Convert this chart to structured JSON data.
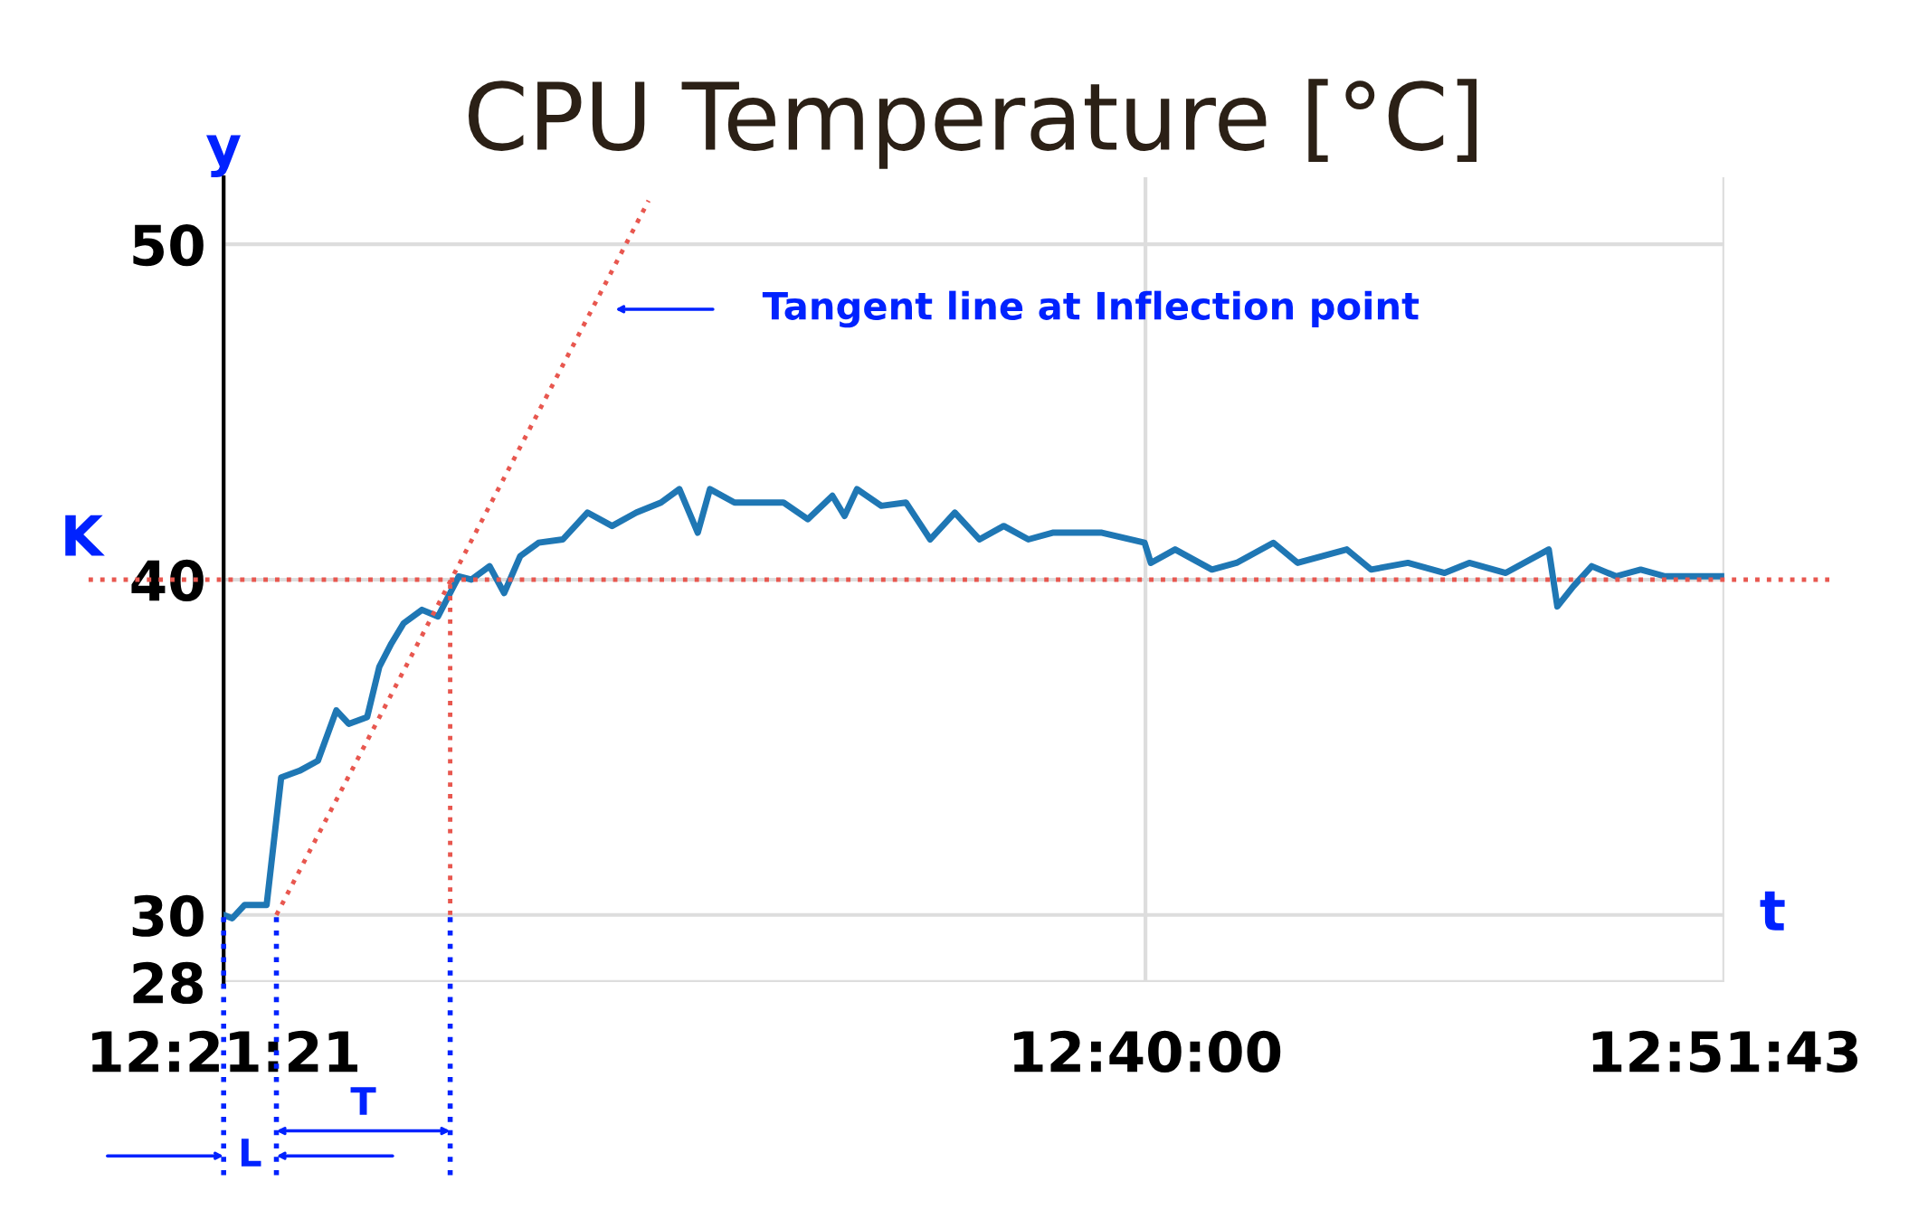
{
  "chart_data": {
    "type": "line",
    "title": "CPU Temperature [°C]",
    "xlabel": "t",
    "ylabel": "y",
    "x": [
      12.3558,
      12.3587,
      12.3629,
      12.3703,
      12.3752,
      12.3814,
      12.3876,
      12.3938,
      12.398,
      12.4042,
      12.4083,
      12.4124,
      12.4165,
      12.4227,
      12.4281,
      12.431,
      12.4351,
      12.4393,
      12.4455,
      12.4504,
      12.4558,
      12.462,
      12.4702,
      12.4785,
      12.4868,
      12.495,
      12.5033,
      12.5095,
      12.5157,
      12.5198,
      12.5281,
      12.5446,
      12.5528,
      12.5611,
      12.5652,
      12.5694,
      12.5776,
      12.5859,
      12.5941,
      12.6024,
      12.6107,
      12.6189,
      12.6272,
      12.6354,
      12.652,
      12.6664,
      12.6685,
      12.6767,
      12.6891,
      12.6974,
      12.7098,
      12.718,
      12.7346,
      12.7428,
      12.7552,
      12.7676,
      12.7759,
      12.7882,
      12.8027,
      12.8056,
      12.811,
      12.8172,
      12.8254,
      12.8337,
      12.8419,
      12.8619
    ],
    "series": [
      {
        "color": "#1f77b4",
        "line_style": "solid",
        "values": [
          30.0,
          29.9,
          30.3,
          30.3,
          34.1,
          34.3,
          34.6,
          36.1,
          35.7,
          35.9,
          37.4,
          38.1,
          38.7,
          39.1,
          38.9,
          39.4,
          40.1,
          40.0,
          40.4,
          39.6,
          40.7,
          41.1,
          41.2,
          42.0,
          41.6,
          42.0,
          42.3,
          42.7,
          41.4,
          42.7,
          42.3,
          42.3,
          41.8,
          42.5,
          41.9,
          42.7,
          42.2,
          42.3,
          41.2,
          42.0,
          41.2,
          41.6,
          41.2,
          41.4,
          41.4,
          41.1,
          40.5,
          40.9,
          40.3,
          40.5,
          41.1,
          40.5,
          40.9,
          40.3,
          40.5,
          40.2,
          40.5,
          40.2,
          40.9,
          39.2,
          39.8,
          40.4,
          40.1,
          40.3,
          40.1,
          40.1
        ]
      },
      {
        "color": "#e8574f",
        "line_style": "dotted",
        "x": [
          12.3736,
          12.4991
        ],
        "values": [
          30,
          51.3
        ]
      },
      {
        "color": "#e8574f",
        "line_style": "dotted",
        "x": [
          12.4322,
          12.4322
        ],
        "values": [
          30,
          40
        ]
      }
    ],
    "xlim": [
      12.3558,
      12.8619
    ],
    "ylim": [
      28,
      52
    ],
    "xticks": [
      {
        "value": 12.3558,
        "label": "12:21:21"
      },
      {
        "value": 12.6667,
        "label": "12:40:00"
      },
      {
        "value": 12.8619,
        "label": "12:51:43"
      }
    ],
    "yticks": [
      28,
      30,
      40,
      50
    ],
    "grid": true,
    "ref_lines": [
      {
        "axis": "y",
        "value": 40,
        "label": "K",
        "color": "#e8574f",
        "line_style": "dotted"
      },
      {
        "axis": "x",
        "value": 12.3558,
        "color": "#0022ff",
        "line_style": "dotted"
      },
      {
        "axis": "x",
        "value": 12.3736,
        "color": "#0022ff",
        "line_style": "dotted"
      },
      {
        "axis": "x",
        "value": 12.4322,
        "color": "#0022ff",
        "line_style": "dotted"
      }
    ],
    "annotations": [
      "Tangent line at Inflection point",
      "L",
      "T"
    ]
  }
}
